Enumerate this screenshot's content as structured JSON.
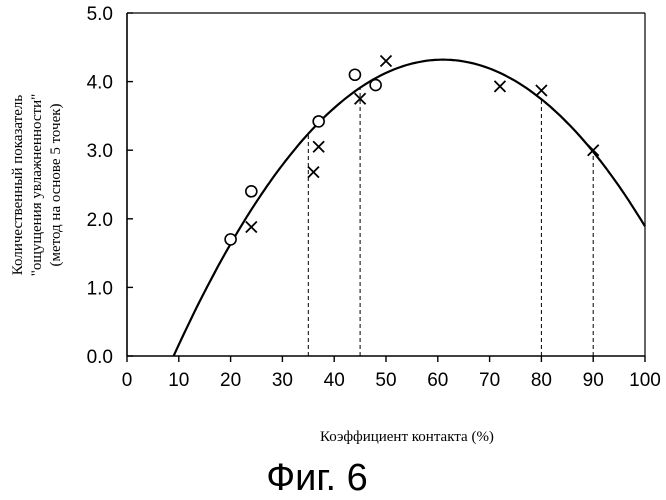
{
  "chart_data": {
    "type": "scatter",
    "title": "",
    "xlabel": "Коэффициент контакта (%)",
    "ylabel_lines": [
      "Количественный показатель",
      "\"ощущения увлажненности\"",
      "(метод на основе 5 точек)"
    ],
    "xlim": [
      0,
      100
    ],
    "ylim": [
      0,
      5
    ],
    "x_ticks": [
      "0",
      "10",
      "20",
      "30",
      "40",
      "50",
      "60",
      "70",
      "80",
      "90",
      "100"
    ],
    "y_ticks": [
      "0.0",
      "1.0",
      "2.0",
      "3.0",
      "4.0",
      "5.0"
    ],
    "grid": false,
    "series": [
      {
        "marker": "circle",
        "x": [
          20,
          24,
          37,
          44,
          48
        ],
        "y": [
          1.7,
          2.4,
          3.42,
          4.1,
          3.95
        ]
      },
      {
        "marker": "cross",
        "x": [
          24,
          36,
          37,
          45,
          50,
          72,
          80,
          90
        ],
        "y": [
          1.88,
          2.68,
          3.05,
          3.75,
          4.3,
          3.93,
          3.87,
          3.0
        ]
      }
    ],
    "fit_curve": {
      "type": "quadratic",
      "vertex_x": 61,
      "vertex_y": 4.32,
      "x_intercept": 9
    },
    "reference_lines_x": [
      35,
      45,
      80,
      90
    ]
  },
  "caption": "Фиг. 6"
}
